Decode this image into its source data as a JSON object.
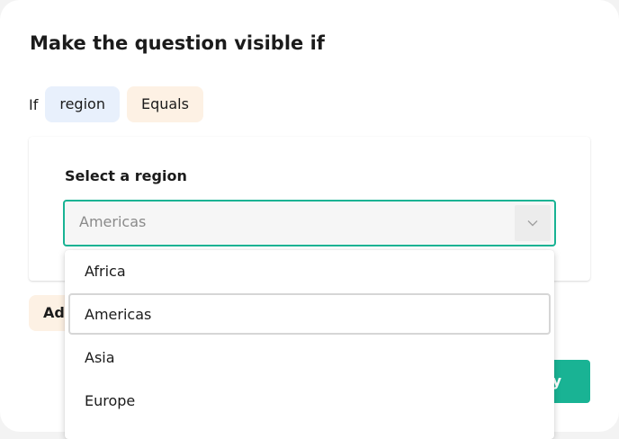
{
  "dialog": {
    "title": "Make the question visible if"
  },
  "condition": {
    "if_label": "If",
    "question_chip": "region",
    "operator_chip": "Equals"
  },
  "question": {
    "title": "Select a region",
    "selected_value": "Americas"
  },
  "buttons": {
    "add_label": "Add condition",
    "apply_label": "Apply"
  },
  "popup": {
    "options": [
      "Africa",
      "Americas",
      "Asia",
      "Europe"
    ],
    "focused_option": "Americas"
  },
  "colors": {
    "accent": "#19b394",
    "question_chip": "#e8f0fc",
    "operator_chip": "#fdf1e4"
  },
  "icons": {
    "dropdown": "chevron-down-icon"
  }
}
